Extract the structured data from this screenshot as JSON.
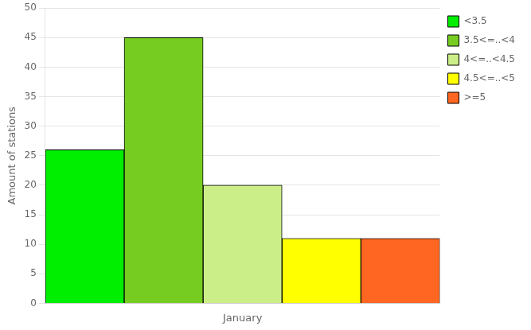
{
  "chart_data": {
    "type": "bar",
    "categories": [
      "January"
    ],
    "series": [
      {
        "name": "<3.5",
        "color": "#00EE00",
        "values": [
          26
        ]
      },
      {
        "name": "3.5<=..<4",
        "color": "#77CC22",
        "values": [
          45
        ]
      },
      {
        "name": "4<=..<4.5",
        "color": "#CCEE88",
        "values": [
          20
        ]
      },
      {
        "name": "4.5<=..<5",
        "color": "#FFFF00",
        "values": [
          11
        ]
      },
      {
        "name": ">=5",
        "color": "#FF6622",
        "values": [
          11
        ]
      }
    ],
    "ylabel": "Amount of stations",
    "ylim": [
      0,
      50
    ],
    "yticks": [
      0,
      5,
      10,
      15,
      20,
      25,
      30,
      35,
      40,
      45,
      50
    ],
    "grid": true,
    "legend": "upper right"
  }
}
